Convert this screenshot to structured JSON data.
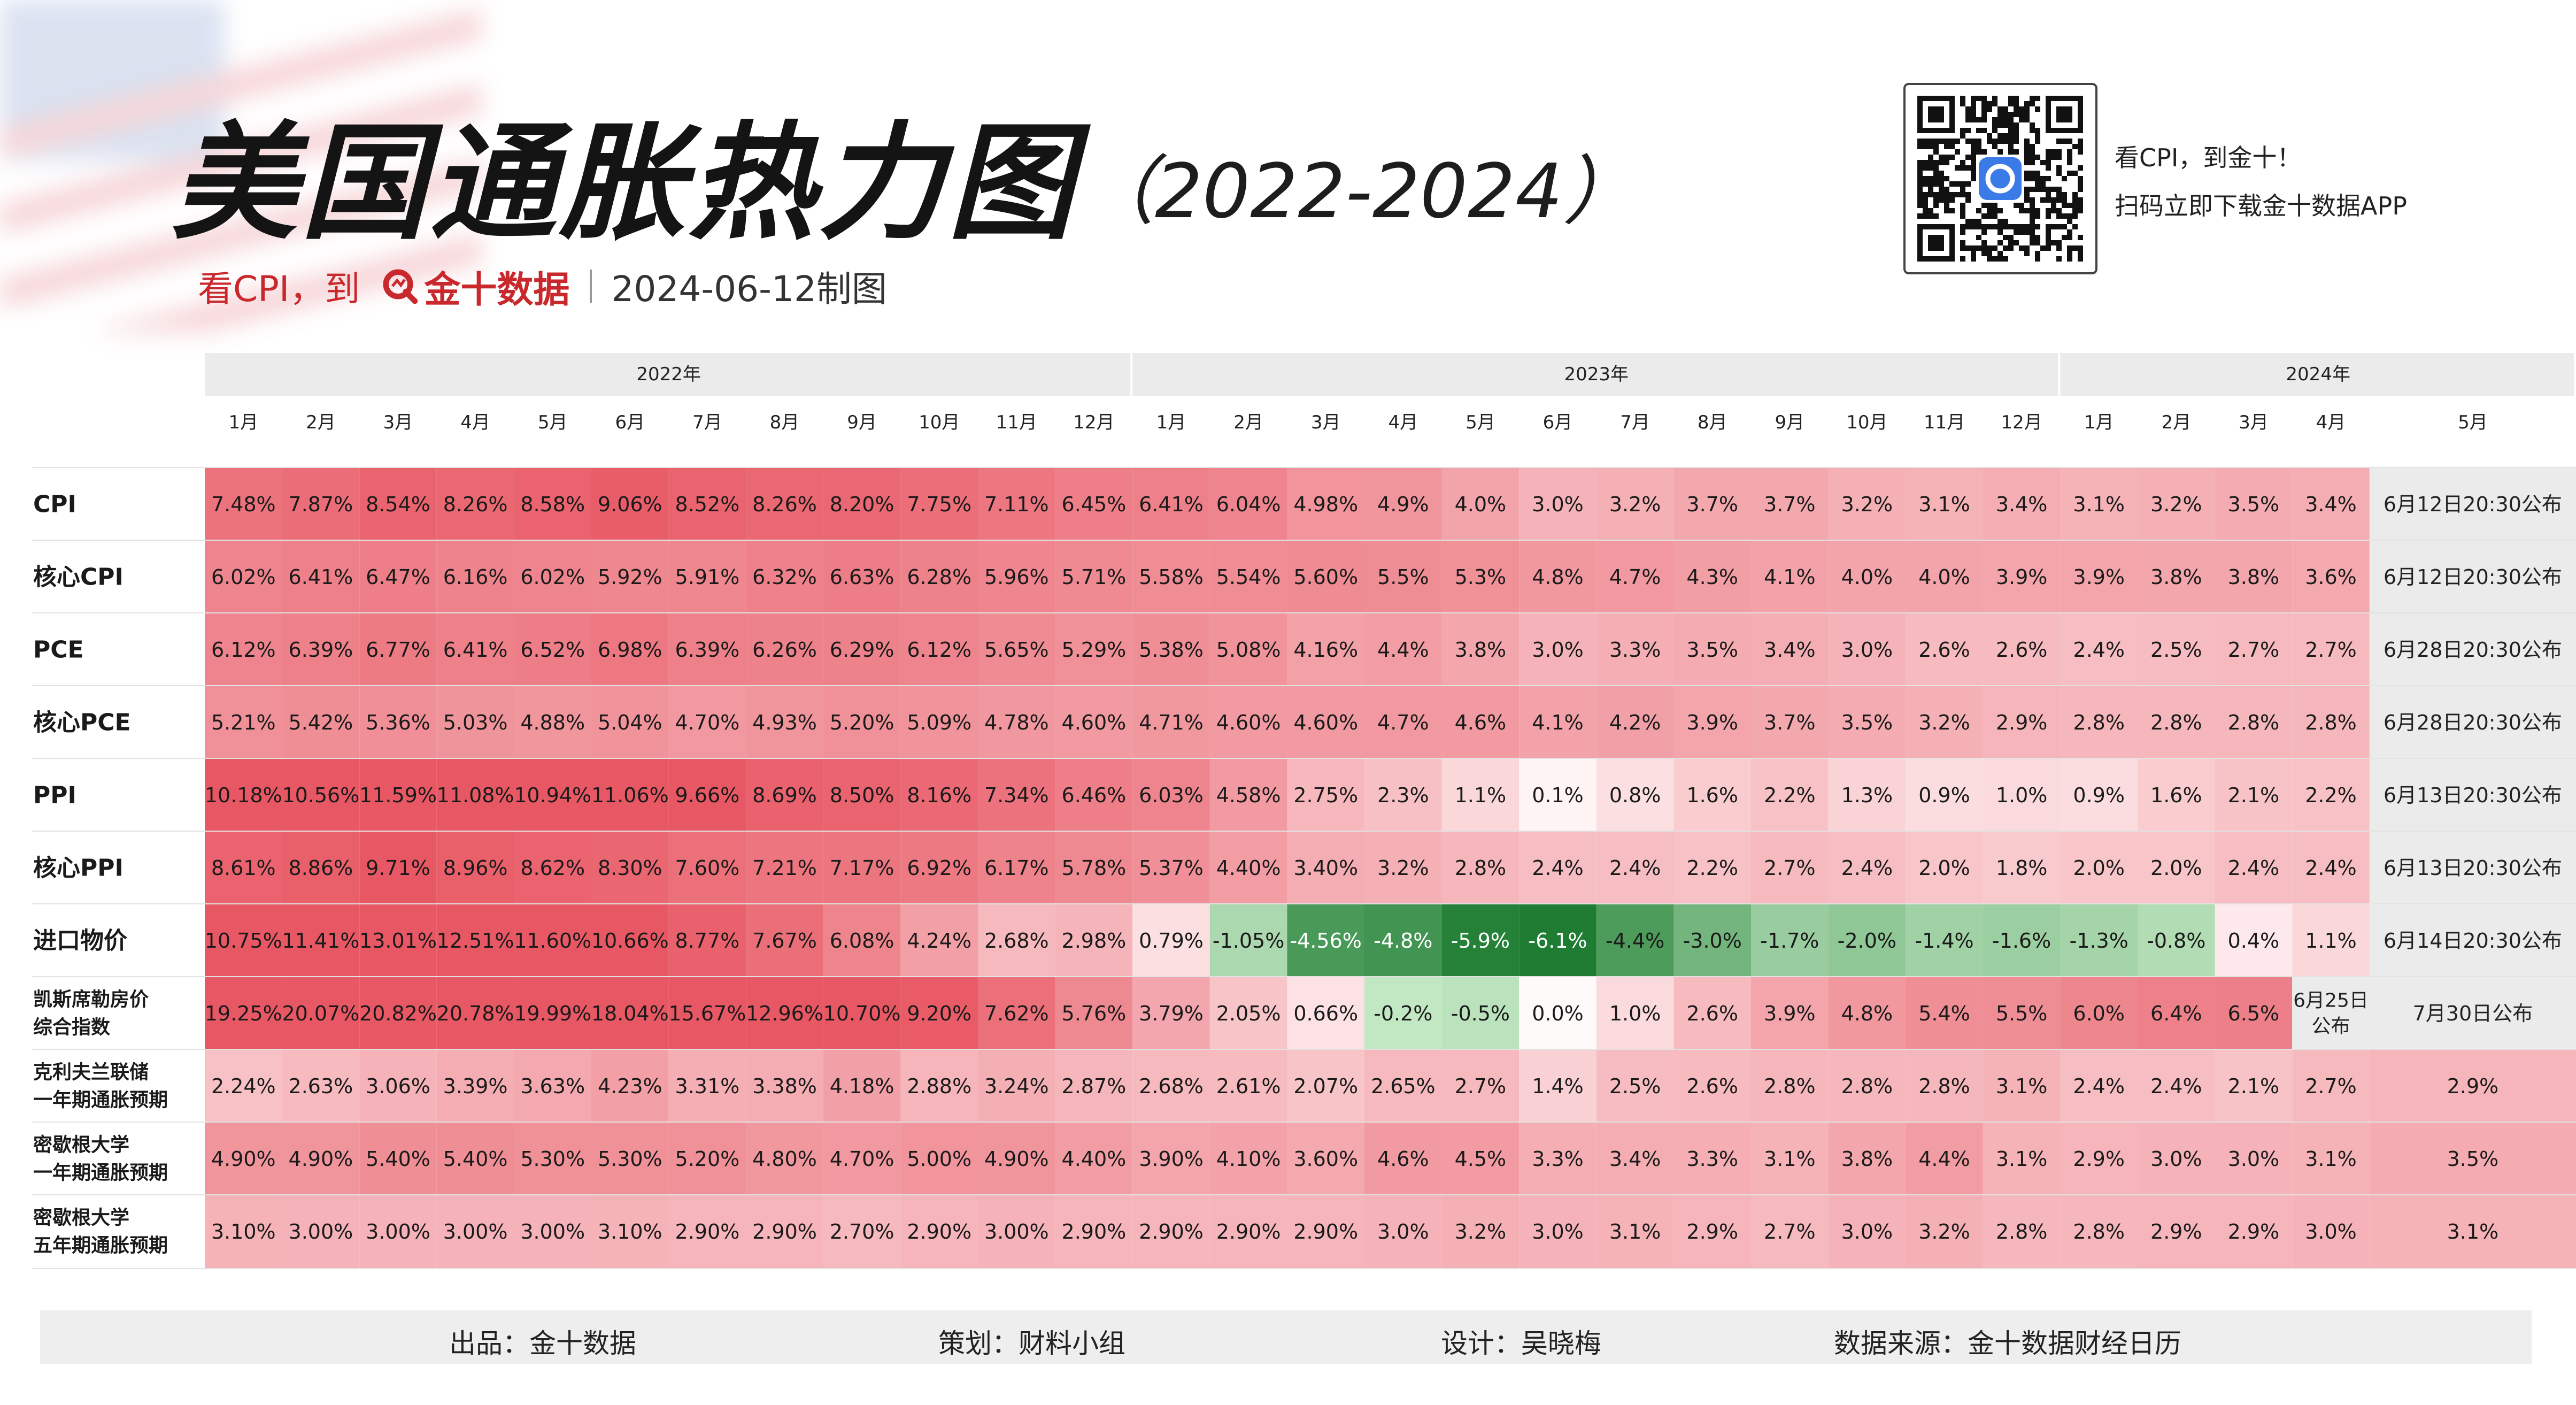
{
  "header": {
    "title": "美国通胀热力图",
    "title_years": "（2022-2024）",
    "subtitle_prefix": "看CPI，到",
    "brand": "金十数据",
    "date": "2024-06-12制图",
    "promo_line1": "看CPI，到金十！",
    "promo_line2": "扫码立即下载金十数据APP"
  },
  "footer": {
    "producer": "出品：金十数据",
    "planner": "策划：财料小组",
    "designer": "设计：吴晓梅",
    "source": "数据来源：金十数据财经日历"
  },
  "colors": {
    "accent": "#c9282d",
    "hot": "#e84d5b",
    "cold": "#1e7a36"
  },
  "chart_data": {
    "type": "heatmap",
    "years": [
      {
        "label": "2022年",
        "months": [
          "1月",
          "2月",
          "3月",
          "4月",
          "5月",
          "6月",
          "7月",
          "8月",
          "9月",
          "10月",
          "11月",
          "12月"
        ]
      },
      {
        "label": "2023年",
        "months": [
          "1月",
          "2月",
          "3月",
          "4月",
          "5月",
          "6月",
          "7月",
          "8月",
          "9月",
          "10月",
          "11月",
          "12月"
        ]
      },
      {
        "label": "2024年",
        "months": [
          "1月",
          "2月",
          "3月",
          "4月",
          "5月"
        ]
      }
    ],
    "rows": [
      {
        "label": "CPI",
        "values": [
          "7.48%",
          "7.87%",
          "8.54%",
          "8.26%",
          "8.58%",
          "9.06%",
          "8.52%",
          "8.26%",
          "8.20%",
          "7.75%",
          "7.11%",
          "6.45%",
          "6.41%",
          "6.04%",
          "4.98%",
          "4.9%",
          "4.0%",
          "3.0%",
          "3.2%",
          "3.7%",
          "3.7%",
          "3.2%",
          "3.1%",
          "3.4%",
          "3.1%",
          "3.2%",
          "3.5%",
          "3.4%"
        ],
        "pending": [
          {
            "text": "6月12日20:30公布",
            "span": 1
          }
        ]
      },
      {
        "label": "核心CPI",
        "values": [
          "6.02%",
          "6.41%",
          "6.47%",
          "6.16%",
          "6.02%",
          "5.92%",
          "5.91%",
          "6.32%",
          "6.63%",
          "6.28%",
          "5.96%",
          "5.71%",
          "5.58%",
          "5.54%",
          "5.60%",
          "5.5%",
          "5.3%",
          "4.8%",
          "4.7%",
          "4.3%",
          "4.1%",
          "4.0%",
          "4.0%",
          "3.9%",
          "3.9%",
          "3.8%",
          "3.8%",
          "3.6%"
        ],
        "pending": [
          {
            "text": "6月12日20:30公布",
            "span": 1
          }
        ]
      },
      {
        "label": "PCE",
        "values": [
          "6.12%",
          "6.39%",
          "6.77%",
          "6.41%",
          "6.52%",
          "6.98%",
          "6.39%",
          "6.26%",
          "6.29%",
          "6.12%",
          "5.65%",
          "5.29%",
          "5.38%",
          "5.08%",
          "4.16%",
          "4.4%",
          "3.8%",
          "3.0%",
          "3.3%",
          "3.5%",
          "3.4%",
          "3.0%",
          "2.6%",
          "2.6%",
          "2.4%",
          "2.5%",
          "2.7%",
          "2.7%"
        ],
        "pending": [
          {
            "text": "6月28日20:30公布",
            "span": 1
          }
        ]
      },
      {
        "label": "核心PCE",
        "values": [
          "5.21%",
          "5.42%",
          "5.36%",
          "5.03%",
          "4.88%",
          "5.04%",
          "4.70%",
          "4.93%",
          "5.20%",
          "5.09%",
          "4.78%",
          "4.60%",
          "4.71%",
          "4.60%",
          "4.60%",
          "4.7%",
          "4.6%",
          "4.1%",
          "4.2%",
          "3.9%",
          "3.7%",
          "3.5%",
          "3.2%",
          "2.9%",
          "2.8%",
          "2.8%",
          "2.8%",
          "2.8%"
        ],
        "pending": [
          {
            "text": "6月28日20:30公布",
            "span": 1
          }
        ]
      },
      {
        "label": "PPI",
        "values": [
          "10.18%",
          "10.56%",
          "11.59%",
          "11.08%",
          "10.94%",
          "11.06%",
          "9.66%",
          "8.69%",
          "8.50%",
          "8.16%",
          "7.34%",
          "6.46%",
          "6.03%",
          "4.58%",
          "2.75%",
          "2.3%",
          "1.1%",
          "0.1%",
          "0.8%",
          "1.6%",
          "2.2%",
          "1.3%",
          "0.9%",
          "1.0%",
          "0.9%",
          "1.6%",
          "2.1%",
          "2.2%"
        ],
        "pending": [
          {
            "text": "6月13日20:30公布",
            "span": 1
          }
        ]
      },
      {
        "label": "核心PPI",
        "values": [
          "8.61%",
          "8.86%",
          "9.71%",
          "8.96%",
          "8.62%",
          "8.30%",
          "7.60%",
          "7.21%",
          "7.17%",
          "6.92%",
          "6.17%",
          "5.78%",
          "5.37%",
          "4.40%",
          "3.40%",
          "3.2%",
          "2.8%",
          "2.4%",
          "2.4%",
          "2.2%",
          "2.7%",
          "2.4%",
          "2.0%",
          "1.8%",
          "2.0%",
          "2.0%",
          "2.4%",
          "2.4%"
        ],
        "pending": [
          {
            "text": "6月13日20:30公布",
            "span": 1
          }
        ]
      },
      {
        "label": "进口物价",
        "values": [
          "10.75%",
          "11.41%",
          "13.01%",
          "12.51%",
          "11.60%",
          "10.66%",
          "8.77%",
          "7.67%",
          "6.08%",
          "4.24%",
          "2.68%",
          "2.98%",
          "0.79%",
          "-1.05%",
          "-4.56%",
          "-4.8%",
          "-5.9%",
          "-6.1%",
          "-4.4%",
          "-3.0%",
          "-1.7%",
          "-2.0%",
          "-1.4%",
          "-1.6%",
          "-1.3%",
          "-0.8%",
          "0.4%",
          "1.1%"
        ],
        "pending": [
          {
            "text": "6月14日20:30公布",
            "span": 1
          }
        ]
      },
      {
        "label": "凯斯席勒房价\n综合指数",
        "values": [
          "19.25%",
          "20.07%",
          "20.82%",
          "20.78%",
          "19.99%",
          "18.04%",
          "15.67%",
          "12.96%",
          "10.70%",
          "9.20%",
          "7.62%",
          "5.76%",
          "3.79%",
          "2.05%",
          "0.66%",
          "-0.2%",
          "-0.5%",
          "0.0%",
          "1.0%",
          "2.6%",
          "3.9%",
          "4.8%",
          "5.4%",
          "5.5%",
          "6.0%",
          "6.4%",
          "6.5%"
        ],
        "pending": [
          {
            "text": "6月25日\n公布",
            "span": 1
          },
          {
            "text": "7月30日公布",
            "span": 1
          }
        ]
      },
      {
        "label": "克利夫兰联储\n一年期通胀预期",
        "values": [
          "2.24%",
          "2.63%",
          "3.06%",
          "3.39%",
          "3.63%",
          "4.23%",
          "3.31%",
          "3.38%",
          "4.18%",
          "2.88%",
          "3.24%",
          "2.87%",
          "2.68%",
          "2.61%",
          "2.07%",
          "2.65%",
          "2.7%",
          "1.4%",
          "2.5%",
          "2.6%",
          "2.8%",
          "2.8%",
          "2.8%",
          "3.1%",
          "2.4%",
          "2.4%",
          "2.1%",
          "2.7%",
          "2.9%"
        ],
        "pending": []
      },
      {
        "label": "密歇根大学\n一年期通胀预期",
        "values": [
          "4.90%",
          "4.90%",
          "5.40%",
          "5.40%",
          "5.30%",
          "5.30%",
          "5.20%",
          "4.80%",
          "4.70%",
          "5.00%",
          "4.90%",
          "4.40%",
          "3.90%",
          "4.10%",
          "3.60%",
          "4.6%",
          "4.5%",
          "3.3%",
          "3.4%",
          "3.3%",
          "3.1%",
          "3.8%",
          "4.4%",
          "3.1%",
          "2.9%",
          "3.0%",
          "3.0%",
          "3.1%",
          "3.5%"
        ],
        "pending": []
      },
      {
        "label": "密歇根大学\n五年期通胀预期",
        "values": [
          "3.10%",
          "3.00%",
          "3.00%",
          "3.00%",
          "3.00%",
          "3.10%",
          "2.90%",
          "2.90%",
          "2.70%",
          "2.90%",
          "3.00%",
          "2.90%",
          "2.90%",
          "2.90%",
          "2.90%",
          "3.0%",
          "3.2%",
          "3.0%",
          "3.1%",
          "2.9%",
          "2.7%",
          "3.0%",
          "3.2%",
          "2.8%",
          "2.8%",
          "2.9%",
          "2.9%",
          "3.0%",
          "3.1%"
        ],
        "pending": []
      }
    ],
    "color_scale": "red for high inflation, white near zero, green for negative"
  }
}
